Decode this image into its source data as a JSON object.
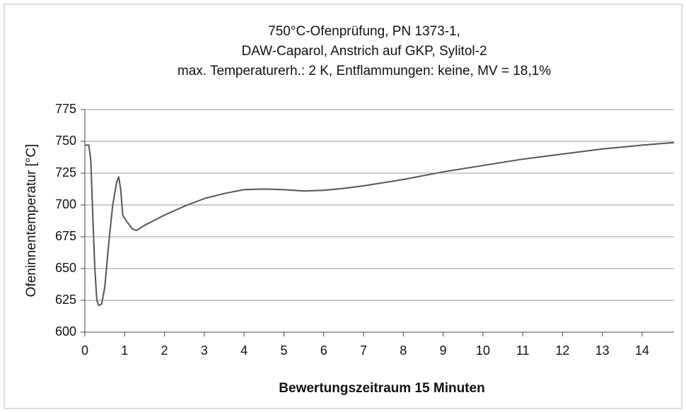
{
  "chart_data": {
    "type": "line",
    "title": [
      "750°C-Ofenprüfung, PN 1373-1,",
      "DAW-Caparol, Anstrich auf GKP, Sylitol-2",
      "max. Temperaturerh.: 2 K, Entflammungen: keine, MV = 18,1%"
    ],
    "x_label": "Bewertungszeitraum 15 Minuten",
    "y_label": "Ofeninnentemperatur [°C]",
    "x": [
      0,
      0.1,
      0.15,
      0.2,
      0.25,
      0.3,
      0.35,
      0.42,
      0.5,
      0.6,
      0.7,
      0.8,
      0.85,
      0.9,
      0.95,
      1.05,
      1.2,
      1.3,
      1.5,
      2,
      2.5,
      3,
      3.5,
      4,
      4.5,
      5,
      5.5,
      6,
      6.5,
      7,
      8,
      9,
      10,
      11,
      12,
      13,
      14,
      14.8
    ],
    "values": [
      747,
      747,
      735,
      690,
      650,
      625,
      621,
      622,
      635,
      670,
      700,
      718,
      722,
      712,
      692,
      687,
      681,
      680,
      684,
      692,
      699,
      705,
      709,
      712,
      712.5,
      712,
      711,
      711.5,
      713,
      715,
      720,
      726,
      731,
      736,
      740,
      744,
      747,
      749
    ],
    "color": "#555555",
    "xlim": [
      0,
      14.8
    ],
    "xticks": [
      0,
      1,
      2,
      3,
      4,
      5,
      6,
      7,
      8,
      9,
      10,
      11,
      12,
      13,
      14
    ],
    "ylim": [
      600,
      775
    ],
    "yticks": [
      600,
      625,
      650,
      675,
      700,
      725,
      750,
      775
    ],
    "grid": true
  }
}
